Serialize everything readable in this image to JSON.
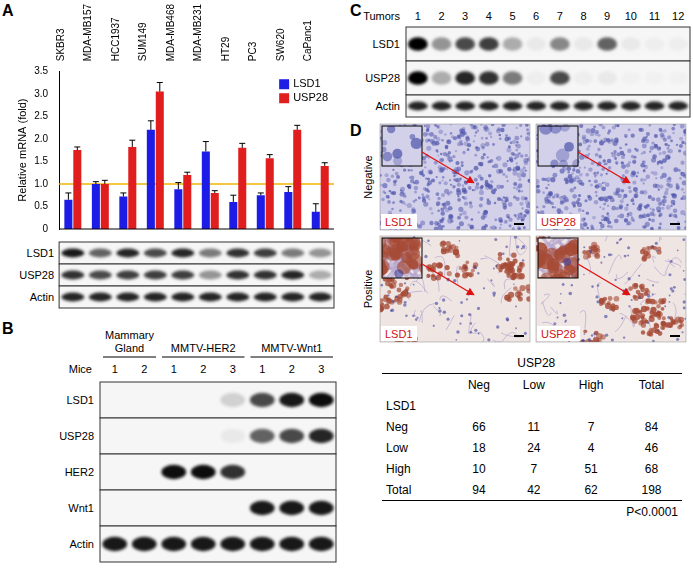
{
  "chart_data": {
    "type": "bar",
    "categories": [
      "SKBR3",
      "MDA-MB157",
      "HCC1937",
      "SUM149",
      "MDA-MB468",
      "MDA-MB231",
      "HT29",
      "PC3",
      "SW620",
      "CaPanc1"
    ],
    "series": [
      {
        "name": "LSD1",
        "color": "#1c1ce6",
        "values": [
          0.65,
          1.0,
          0.72,
          2.2,
          0.88,
          1.72,
          0.6,
          0.75,
          0.82,
          0.38
        ],
        "errors": [
          0.15,
          0.05,
          0.08,
          0.2,
          0.15,
          0.22,
          0.15,
          0.05,
          0.12,
          0.18
        ]
      },
      {
        "name": "USP28",
        "color": "#e01e1e",
        "values": [
          1.75,
          1.0,
          1.82,
          3.05,
          1.2,
          0.8,
          1.8,
          1.57,
          2.2,
          1.4
        ],
        "errors": [
          0.07,
          0.08,
          0.15,
          0.2,
          0.06,
          0.05,
          0.1,
          0.08,
          0.1,
          0.07
        ]
      }
    ],
    "y_label": "Relative mRNA (fold)",
    "ylim": [
      0,
      3.5
    ],
    "yticks": [
      0,
      0.5,
      {
        "value": 1,
        "label": "1.0"
      },
      1.5,
      {
        "value": 2,
        "label": "2.0"
      },
      2.5,
      {
        "value": 3,
        "label": "3.0"
      },
      3.5
    ],
    "reference_line": {
      "value": 1,
      "color": "#f2b400"
    },
    "legend": "upper right",
    "grid": false
  },
  "panel_labels": [
    "A",
    "B",
    "C",
    "D"
  ],
  "blot_A": {
    "rows": [
      {
        "name": "LSD1",
        "bands": [
          0.9,
          0.6,
          0.85,
          0.7,
          0.85,
          0.5,
          0.8,
          0.75,
          0.5,
          0.4
        ]
      },
      {
        "name": "USP28",
        "bands": [
          0.8,
          0.7,
          0.75,
          0.75,
          0.75,
          0.4,
          0.8,
          0.8,
          0.85,
          0.3
        ]
      },
      {
        "name": "Actin",
        "bands": [
          0.85,
          0.85,
          0.85,
          0.85,
          0.85,
          0.85,
          0.85,
          0.85,
          0.85,
          0.85
        ]
      }
    ]
  },
  "blot_B": {
    "lane_label": "Mice",
    "groups": [
      {
        "name": "Mammary Gland",
        "lanes": [
          "1",
          "2"
        ]
      },
      {
        "name": "MMTV-HER2",
        "lanes": [
          "1",
          "2",
          "3"
        ]
      },
      {
        "name": "MMTV-Wnt1",
        "lanes": [
          "1",
          "2",
          "3"
        ]
      }
    ],
    "rows": [
      {
        "name": "LSD1",
        "bands": [
          0,
          0,
          0,
          0,
          0.15,
          0.7,
          0.9,
          0.95
        ]
      },
      {
        "name": "USP28",
        "bands": [
          0,
          0,
          0,
          0,
          0.05,
          0.6,
          0.7,
          0.85
        ]
      },
      {
        "name": "HER2",
        "bands": [
          0,
          0,
          0.95,
          0.95,
          0.8,
          0,
          0,
          0
        ]
      },
      {
        "name": "Wnt1",
        "bands": [
          0,
          0,
          0,
          0,
          0,
          0.9,
          0.9,
          0.9
        ]
      },
      {
        "name": "Actin",
        "bands": [
          0.9,
          0.9,
          0.9,
          0.9,
          0.9,
          0.9,
          0.9,
          0.9
        ]
      }
    ]
  },
  "blot_C": {
    "lane_label": "Tumors",
    "lanes": [
      "1",
      "2",
      "3",
      "4",
      "5",
      "6",
      "7",
      "8",
      "9",
      "10",
      "11",
      "12"
    ],
    "rows": [
      {
        "name": "LSD1",
        "bands": [
          1.0,
          0.4,
          0.7,
          0.75,
          0.3,
          0.05,
          0.45,
          0.05,
          0.6,
          0.05,
          0.03,
          0.03
        ]
      },
      {
        "name": "USP28",
        "bands": [
          1.0,
          0.3,
          0.85,
          0.8,
          0.5,
          0.03,
          0.7,
          0.03,
          0.05,
          0.02,
          0.02,
          0.02
        ]
      },
      {
        "name": "Actin",
        "bands": [
          0.85,
          0.85,
          0.85,
          0.85,
          0.85,
          0.85,
          0.85,
          0.85,
          0.85,
          0.85,
          0.85,
          0.85
        ]
      }
    ]
  },
  "panel_D": {
    "rows": [
      {
        "name": "Negative",
        "images": [
          "LSD1",
          "USP28"
        ]
      },
      {
        "name": "Positive",
        "images": [
          "LSD1",
          "USP28"
        ]
      }
    ],
    "table": {
      "column_header": "USP28",
      "row_header": "LSD1",
      "columns": [
        "Neg",
        "Low",
        "High",
        "Total"
      ],
      "rows": [
        {
          "name": "Neg",
          "values": [
            66,
            11,
            7,
            84
          ]
        },
        {
          "name": "Low",
          "values": [
            18,
            24,
            4,
            46
          ]
        },
        {
          "name": "High",
          "values": [
            10,
            7,
            51,
            68
          ]
        },
        {
          "name": "Total",
          "values": [
            94,
            42,
            62,
            198
          ]
        }
      ],
      "footer": "P<0.0001"
    }
  }
}
